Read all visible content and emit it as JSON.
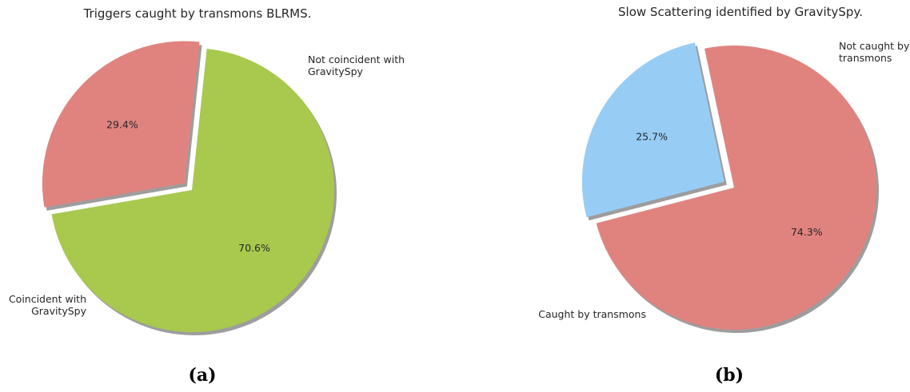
{
  "chart_data": [
    {
      "type": "pie",
      "title": "Triggers caught by transmons BLRMS.",
      "panel_label": "(a)",
      "shadow": true,
      "start_angle_deg": 84,
      "slices": [
        {
          "label_lines": [
            "Not coincident with",
            "GravitySpy"
          ],
          "value": 29.4,
          "pct_text": "29.4%",
          "color": "#e0837f",
          "exploded": true
        },
        {
          "label_lines": [
            "Coincident with",
            "GravitySpy"
          ],
          "value": 70.6,
          "pct_text": "70.6%",
          "color": "#a8c94e",
          "exploded": false
        }
      ]
    },
    {
      "type": "pie",
      "title": "Slow Scattering identified by GravitySpy.",
      "panel_label": "(b)",
      "shadow": true,
      "start_angle_deg": 102,
      "slices": [
        {
          "label_lines": [
            "Not caught by",
            "transmons"
          ],
          "value": 25.7,
          "pct_text": "25.7%",
          "color": "#97cdf5",
          "exploded": true
        },
        {
          "label_lines": [
            "Caught by transmons"
          ],
          "value": 74.3,
          "pct_text": "74.3%",
          "color": "#e0837f",
          "exploded": false
        }
      ]
    }
  ]
}
